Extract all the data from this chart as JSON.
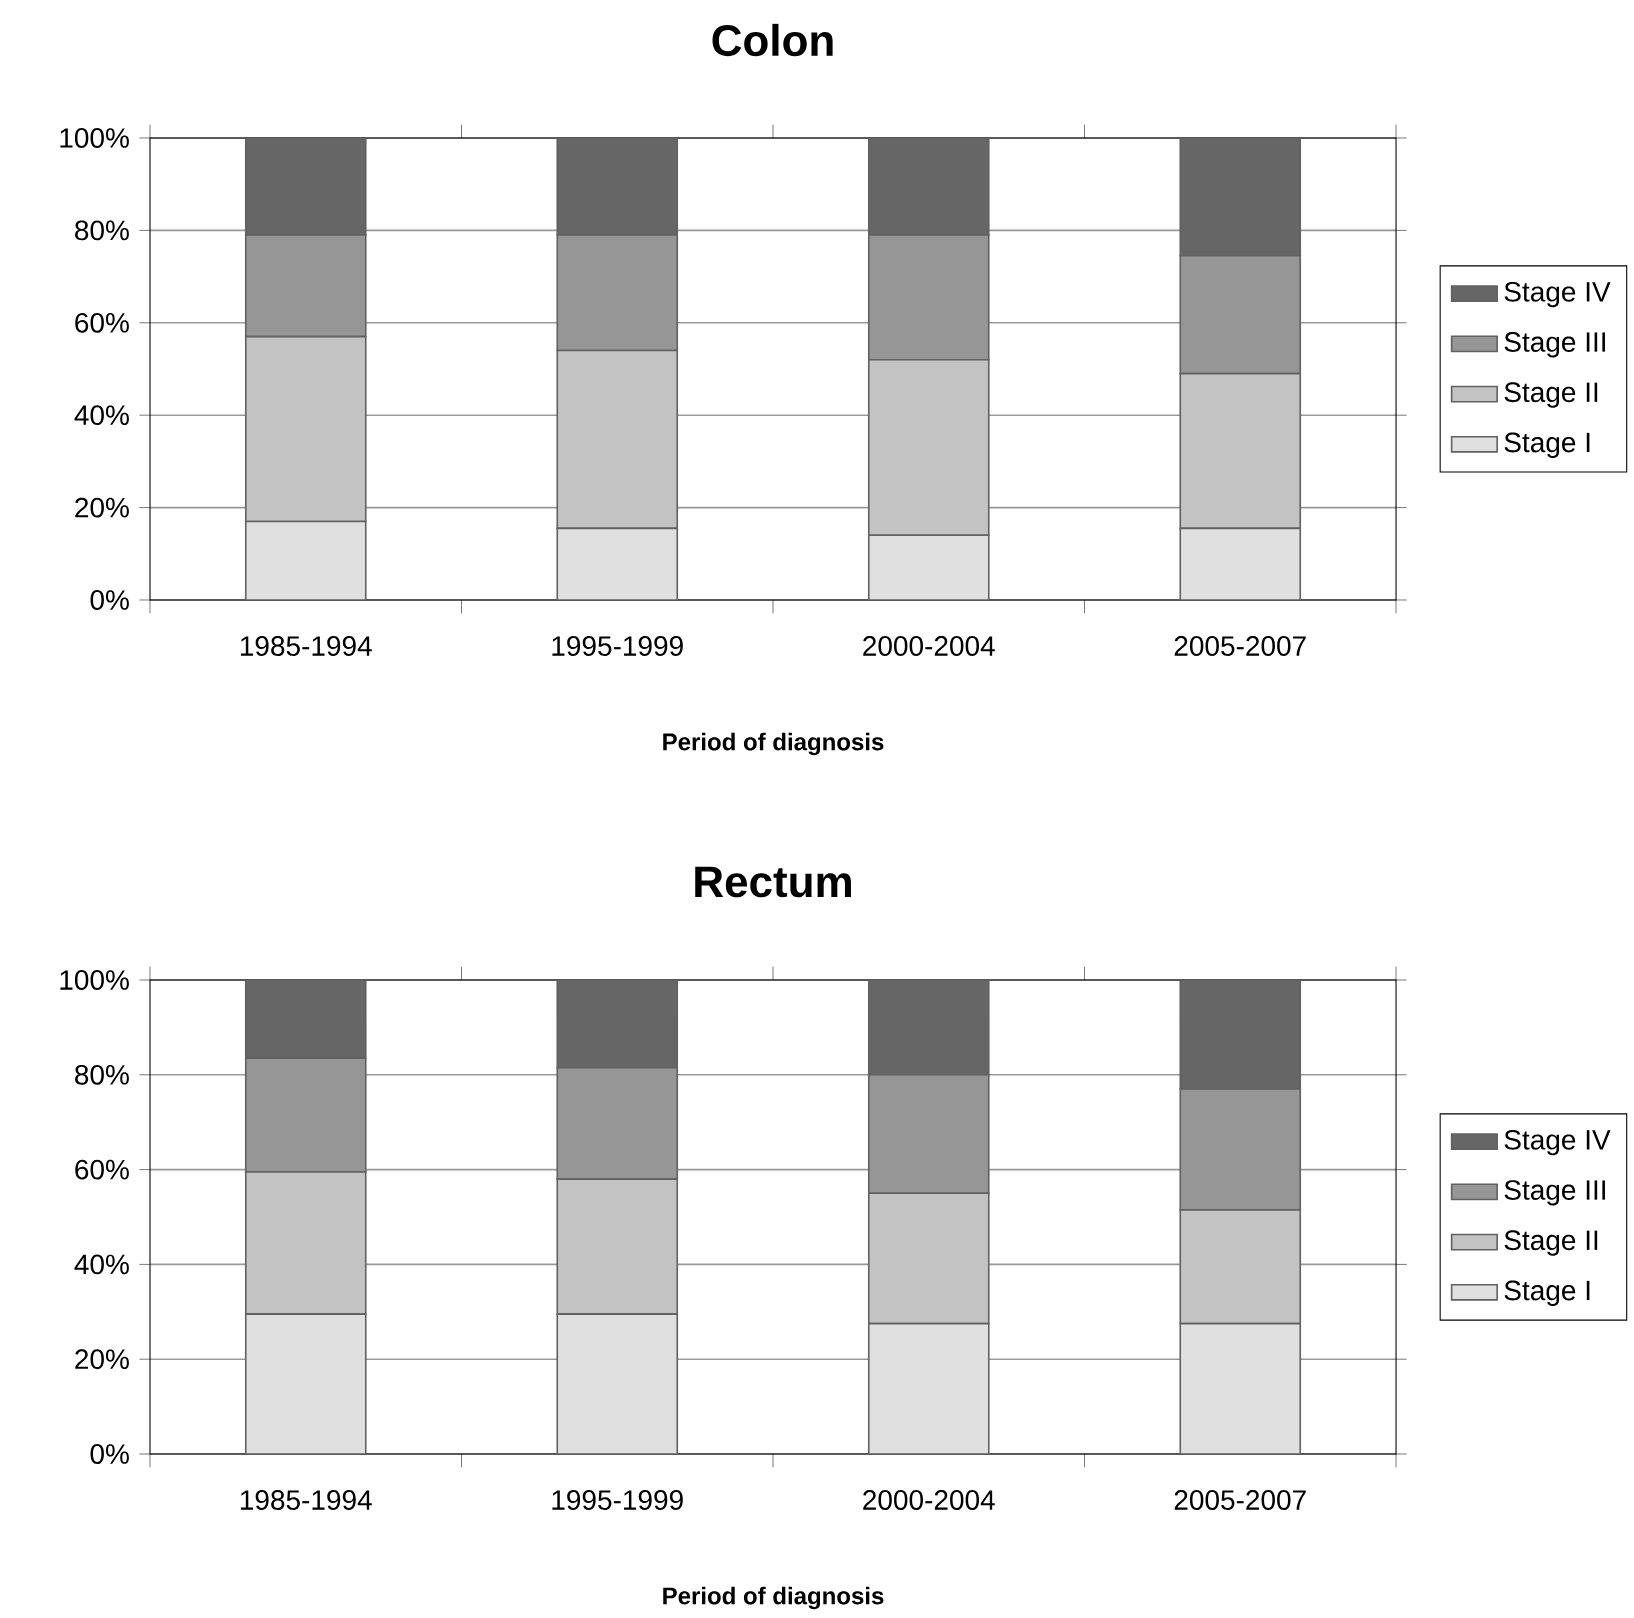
{
  "chart_data": [
    {
      "type": "bar",
      "title": "Colon",
      "xlabel": "Period of diagnosis",
      "categories": [
        "1985-1994",
        "1995-1999",
        "2000-2004",
        "2005-2007"
      ],
      "stacked": true,
      "ylim": [
        0,
        100
      ],
      "yticks": [
        {
          "value": 0,
          "label": "0%"
        },
        {
          "value": 20,
          "label": "20%"
        },
        {
          "value": 40,
          "label": "40%"
        },
        {
          "value": 60,
          "label": "60%"
        },
        {
          "value": 80,
          "label": "80%"
        },
        {
          "value": 100,
          "label": "100%"
        }
      ],
      "grid": "y",
      "legend": "right",
      "series": [
        {
          "name": "Stage I",
          "color": "#e0e0e0",
          "values": [
            17,
            15.5,
            14,
            15.5
          ]
        },
        {
          "name": "Stage II",
          "color": "#c3c3c3",
          "values": [
            40,
            38.5,
            38,
            33.5
          ]
        },
        {
          "name": "Stage III",
          "color": "#969696",
          "values": [
            22,
            25,
            27,
            25.5
          ]
        },
        {
          "name": "Stage IV",
          "color": "#666666",
          "values": [
            21,
            21,
            21,
            25.5
          ]
        }
      ]
    },
    {
      "type": "bar",
      "title": "Rectum",
      "xlabel": "Period of diagnosis",
      "categories": [
        "1985-1994",
        "1995-1999",
        "2000-2004",
        "2005-2007"
      ],
      "stacked": true,
      "ylim": [
        0,
        100
      ],
      "yticks": [
        {
          "value": 0,
          "label": "0%"
        },
        {
          "value": 20,
          "label": "20%"
        },
        {
          "value": 40,
          "label": "40%"
        },
        {
          "value": 60,
          "label": "60%"
        },
        {
          "value": 80,
          "label": "80%"
        },
        {
          "value": 100,
          "label": "100%"
        }
      ],
      "grid": "y",
      "legend": "right",
      "series": [
        {
          "name": "Stage I",
          "color": "#e0e0e0",
          "values": [
            29.5,
            29.5,
            27.5,
            27.5
          ]
        },
        {
          "name": "Stage II",
          "color": "#c3c3c3",
          "values": [
            30,
            28.5,
            27.5,
            24
          ]
        },
        {
          "name": "Stage III",
          "color": "#969696",
          "values": [
            24,
            23.5,
            25,
            25.5
          ]
        },
        {
          "name": "Stage IV",
          "color": "#666666",
          "values": [
            16.5,
            18.5,
            20,
            23
          ]
        }
      ]
    }
  ]
}
